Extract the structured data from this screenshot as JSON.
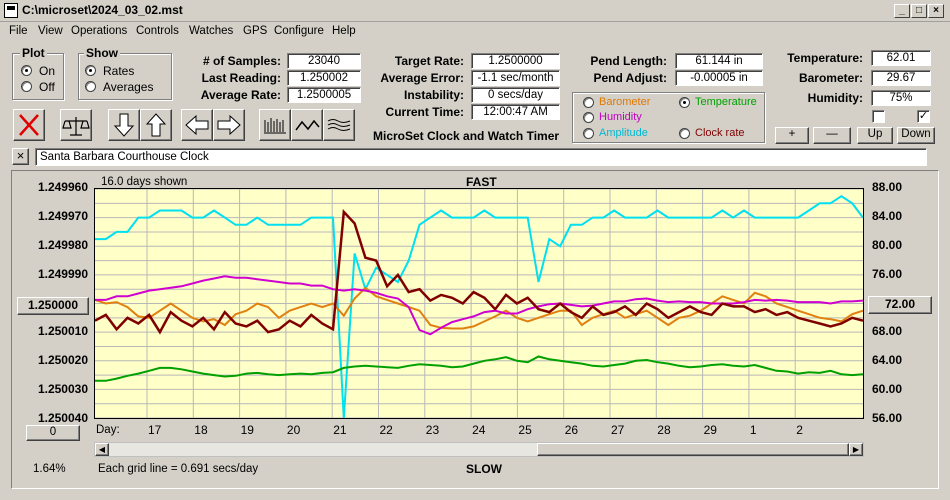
{
  "window": {
    "title": "C:\\microset\\2024_03_02.mst"
  },
  "menu": [
    "File",
    "View",
    "Operations",
    "Controls",
    "Watches",
    "GPS",
    "Configure",
    "Help"
  ],
  "plot_group": {
    "title": "Plot",
    "on": "On",
    "off": "Off",
    "selected": "On"
  },
  "show_group": {
    "title": "Show",
    "rates": "Rates",
    "averages": "Averages",
    "selected": "Rates"
  },
  "stats": {
    "samples_label": "# of Samples:",
    "samples": "23040",
    "last_label": "Last Reading:",
    "last": "1.250002",
    "avg_label": "Average Rate:",
    "avg": "1.2500005",
    "target_label": "Target Rate:",
    "target": "1.2500000",
    "err_label": "Average Error:",
    "err": "-1.1 sec/month",
    "inst_label": "Instability:",
    "inst": "0 secs/day",
    "time_label": "Current Time:",
    "time": "12:00:47 AM",
    "app_name": "MicroSet Clock and Watch Timer",
    "pend_len_label": "Pend Length:",
    "pend_len": "61.144 in",
    "pend_adj_label": "Pend Adjust:",
    "pend_adj": "-0.00005 in",
    "temp_label": "Temperature:",
    "temp": "62.01",
    "baro_label": "Barometer:",
    "baro": "29.67",
    "hum_label": "Humidity:",
    "hum": "75%"
  },
  "right_axis_options": [
    {
      "label": "Barometer",
      "color": "#e07800",
      "selected": false
    },
    {
      "label": "Temperature",
      "color": "#00a000",
      "selected": true
    },
    {
      "label": "Humidity",
      "color": "#c000c0",
      "selected": false
    },
    {
      "label": "Amplitude",
      "color": "#00b8d0",
      "selected": false
    },
    {
      "label": "Clock rate",
      "color": "#800000",
      "selected": false
    }
  ],
  "scale_buttons": [
    "+",
    "—",
    "Up",
    "Down"
  ],
  "checkboxes": [
    false,
    true
  ],
  "clock_name": "Santa Barbara Courthouse Clock",
  "chart_header": {
    "days_shown": "16.0 days shown",
    "fast": "FAST",
    "slow": "SLOW",
    "grid": "Each grid line = 0.691 secs/day",
    "percent": "1.64%",
    "day_label": "Day:",
    "left_btn": "1.250000",
    "right_btn": "72.00",
    "zero_btn": "0"
  },
  "chart_data": {
    "type": "line",
    "x_ticks": [
      "17",
      "18",
      "19",
      "20",
      "21",
      "22",
      "23",
      "24",
      "25",
      "26",
      "27",
      "28",
      "29",
      "1",
      "2"
    ],
    "y_left_ticks": [
      "1.249960",
      "1.249970",
      "1.249980",
      "1.249990",
      "1.250000",
      "1.250010",
      "1.250020",
      "1.250030",
      "1.250040"
    ],
    "y_right_ticks": [
      "88.00",
      "84.00",
      "80.00",
      "76.00",
      "72.00",
      "68.00",
      "64.00",
      "60.00",
      "56.00"
    ],
    "ylim_left": [
      1.24996,
      1.25004
    ],
    "ylim_right": [
      56,
      88
    ],
    "series": [
      {
        "color": "#00e0f0",
        "axis": "right",
        "values": [
          81,
          81,
          82,
          82,
          84,
          84,
          85,
          85,
          85,
          84,
          84,
          85,
          84,
          83,
          83,
          84,
          83,
          83,
          83,
          83,
          84,
          84,
          84,
          56,
          79,
          74,
          77,
          76,
          75,
          78,
          83,
          84,
          85,
          84,
          84,
          84,
          85,
          84,
          84,
          84,
          84,
          75,
          81,
          80,
          83,
          83,
          84,
          84,
          85,
          84,
          84,
          84,
          85,
          84,
          84,
          84,
          84,
          84,
          85,
          84,
          85,
          84,
          84,
          84,
          84,
          84,
          85,
          86,
          86,
          87,
          86,
          84
        ]
      },
      {
        "color": "#00a000",
        "axis": "right",
        "values": [
          61.2,
          61.2,
          61.5,
          61.9,
          62.2,
          62.6,
          63.0,
          63.0,
          62.8,
          62.5,
          62.2,
          62.0,
          61.8,
          61.9,
          62.2,
          62.3,
          62.1,
          62.0,
          62.1,
          62.2,
          62.1,
          62.3,
          62.4,
          63.0,
          63.2,
          63.3,
          63.2,
          63.1,
          63.0,
          63.3,
          63.5,
          63.4,
          63.3,
          63.1,
          63.2,
          63.6,
          64.0,
          64.2,
          64.5,
          64.0,
          63.8,
          64.6,
          64.2,
          64.0,
          63.8,
          63.6,
          63.3,
          63.2,
          63.4,
          63.6,
          64.0,
          64.1,
          63.8,
          63.6,
          63.3,
          63.1,
          63.2,
          63.4,
          63.5,
          63.3,
          63.2,
          63.4,
          63.0,
          62.6,
          62.5,
          62.2,
          62.4,
          62.3,
          62.6,
          62.1,
          62.0,
          62.1
        ]
      },
      {
        "color": "#e08010",
        "axis": "right",
        "values": [
          72.5,
          72,
          72.2,
          71.5,
          70.2,
          70,
          71,
          72,
          71,
          70,
          69.5,
          69.8,
          69,
          70.5,
          71,
          72,
          71.5,
          70,
          71,
          71.5,
          72,
          71.5,
          72,
          70.3,
          72.7,
          74.2,
          73.0,
          72.5,
          72,
          71.5,
          71,
          69,
          68.6,
          68.5,
          68.5,
          68.8,
          69.5,
          70.2,
          71,
          70,
          69.5,
          70,
          70.5,
          71,
          71,
          69,
          70,
          70.5,
          71,
          70,
          70.5,
          71,
          70,
          69,
          70,
          70.3,
          71,
          72,
          73,
          72.5,
          72,
          73.5,
          73,
          72,
          71.5,
          71,
          70.5,
          70,
          69.8,
          69.5,
          70.5,
          71
        ]
      },
      {
        "color": "#d000d0",
        "axis": "right",
        "values": [
          72.5,
          72.5,
          73,
          73,
          73.4,
          73.8,
          74.0,
          74.2,
          74.4,
          74.8,
          75.2,
          75.5,
          75.8,
          75.6,
          75.6,
          75.4,
          75.2,
          75.0,
          74.8,
          74.8,
          74.5,
          74.5,
          74.0,
          73.8,
          74.0,
          73.8,
          73.5,
          73.0,
          72.7,
          71.5,
          68.3,
          67.7,
          68.6,
          69.4,
          69.8,
          70.2,
          70.8,
          71.0,
          70.6,
          70.6,
          71.2,
          71.6,
          71.9,
          72.0,
          71.8,
          71.6,
          71.7,
          72.0,
          72.3,
          72.3,
          72.6,
          72.7,
          72.4,
          72.2,
          72.3,
          72.2,
          72.2,
          72.0,
          72.0,
          72.0,
          72.2,
          72.5,
          72.4,
          72.5,
          72.4,
          72.2,
          72.2,
          72.2,
          72.0,
          72.3,
          72.3,
          72.4
        ]
      },
      {
        "color": "#800000",
        "axis": "left",
        "values": [
          1.250006,
          1.250004,
          1.250009,
          1.250005,
          1.250007,
          1.250004,
          1.25001,
          1.250003,
          1.250006,
          1.250008,
          1.250005,
          1.250009,
          1.250003,
          1.250007,
          1.250008,
          1.250006,
          1.25001,
          1.250009,
          1.250006,
          1.250008,
          1.250004,
          1.250007,
          1.250009,
          1.249968,
          1.249972,
          1.249984,
          1.249985,
          1.249994,
          1.24999,
          1.249996,
          1.249995,
          1.249999,
          1.249997,
          1.249998,
          1.25,
          1.249996,
          1.249998,
          1.250002,
          1.249997,
          1.25,
          1.249998,
          1.250002,
          1.250003,
          1.25,
          1.250003,
          1.250005,
          1.250001,
          1.250004,
          1.250003,
          1.250001,
          1.250004,
          1.25,
          1.250002,
          1.250005,
          1.250003,
          1.250001,
          1.250003,
          1.250004,
          1.25,
          1.250001,
          1.250001,
          1.250003,
          1.250002,
          1.250004,
          1.250003,
          1.250005,
          1.250006,
          1.250007,
          1.250008,
          1.250007,
          1.250005,
          1.250006
        ]
      }
    ]
  }
}
